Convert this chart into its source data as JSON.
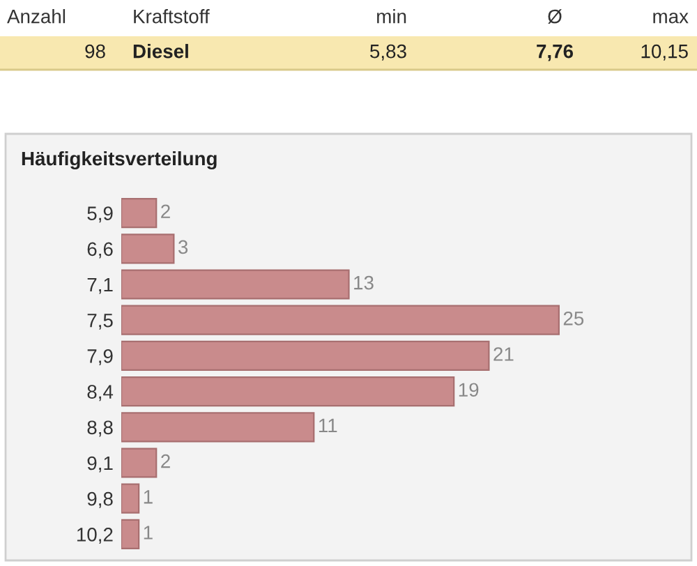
{
  "chart_data": {
    "type": "bar",
    "orientation": "horizontal",
    "title": "Häufigkeitsverteilung",
    "categories": [
      "5,9",
      "6,6",
      "7,1",
      "7,5",
      "7,9",
      "8,4",
      "8,8",
      "9,1",
      "9,8",
      "10,2"
    ],
    "values": [
      2,
      3,
      13,
      25,
      21,
      19,
      11,
      2,
      1,
      1
    ],
    "color": "#c98b8c",
    "data_labels": true,
    "grid": false,
    "legend": false,
    "annotations": [
      "Anzahl",
      "Kraftstoff",
      "min",
      "Ø",
      "max",
      "98",
      "Diesel",
      "5,83",
      "7,76",
      "10,15"
    ]
  }
}
